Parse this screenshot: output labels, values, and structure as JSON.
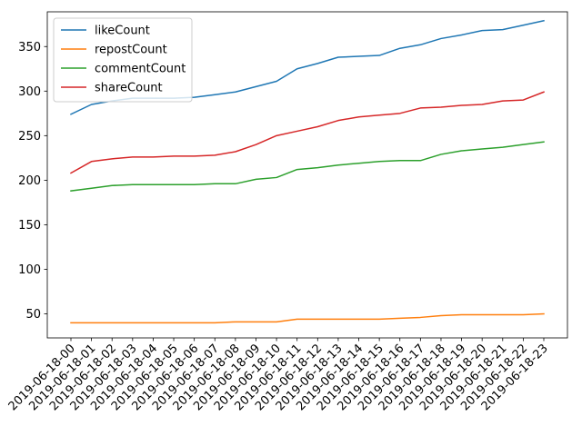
{
  "chart_data": {
    "type": "line",
    "title": "",
    "xlabel": "",
    "ylabel": "",
    "x": [
      "2019-06-18-00",
      "2019-06-18-01",
      "2019-06-18-02",
      "2019-06-18-03",
      "2019-06-18-04",
      "2019-06-18-05",
      "2019-06-18-06",
      "2019-06-18-07",
      "2019-06-18-08",
      "2019-06-18-09",
      "2019-06-18-10",
      "2019-06-18-11",
      "2019-06-18-12",
      "2019-06-18-13",
      "2019-06-18-14",
      "2019-06-18-15",
      "2019-06-18-16",
      "2019-06-18-17",
      "2019-06-18-18",
      "2019-06-18-19",
      "2019-06-18-20",
      "2019-06-18-21",
      "2019-06-18-22",
      "2019-06-18-23"
    ],
    "yticks": [
      50,
      100,
      150,
      200,
      250,
      300,
      350
    ],
    "ylim": [
      23,
      389
    ],
    "grid": false,
    "legend_position": "top-left",
    "series": [
      {
        "name": "likeCount",
        "color": "#1f77b4",
        "values": [
          274,
          285,
          289,
          292,
          292,
          292,
          293,
          296,
          299,
          305,
          311,
          325,
          331,
          338,
          339,
          340,
          348,
          352,
          359,
          363,
          368,
          369,
          374,
          379
        ]
      },
      {
        "name": "repostCount",
        "color": "#ff7f0e",
        "values": [
          40,
          40,
          40,
          40,
          40,
          40,
          40,
          40,
          41,
          41,
          41,
          44,
          44,
          44,
          44,
          44,
          45,
          46,
          48,
          49,
          49,
          49,
          49,
          50
        ]
      },
      {
        "name": "commentCount",
        "color": "#2ca02c",
        "values": [
          188,
          191,
          194,
          195,
          195,
          195,
          195,
          196,
          196,
          201,
          203,
          212,
          214,
          217,
          219,
          221,
          222,
          222,
          229,
          233,
          235,
          237,
          240,
          243
        ]
      },
      {
        "name": "shareCount",
        "color": "#d62728",
        "values": [
          208,
          221,
          224,
          226,
          226,
          227,
          227,
          228,
          232,
          240,
          250,
          255,
          260,
          267,
          271,
          273,
          275,
          281,
          282,
          284,
          285,
          289,
          290,
          299
        ]
      }
    ]
  }
}
